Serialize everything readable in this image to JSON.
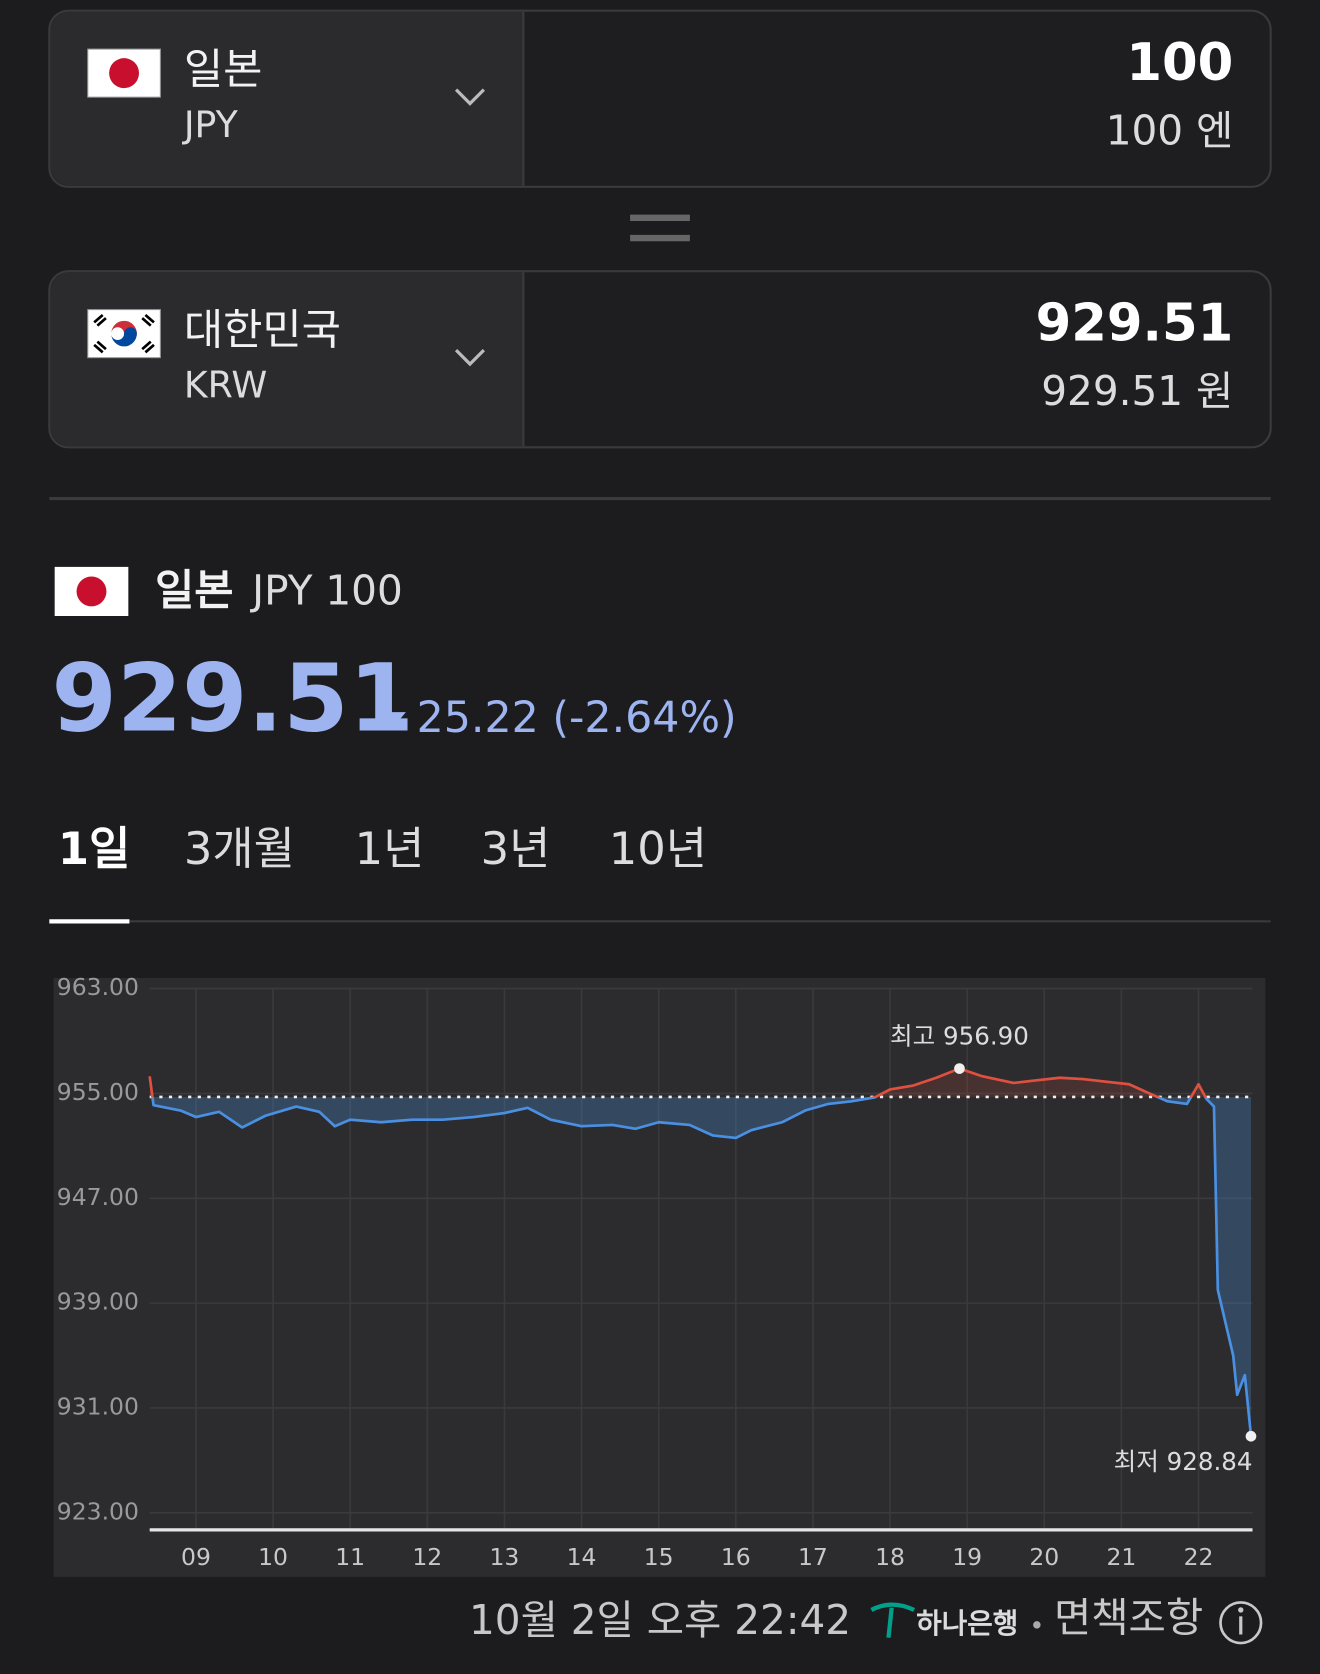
{
  "from": {
    "country": "일본",
    "code": "JPY",
    "amount": "100",
    "amount_text": "100 엔"
  },
  "to": {
    "country": "대한민국",
    "code": "KRW",
    "amount": "929.51",
    "amount_text": "929.51 원"
  },
  "summary": {
    "country": "일본",
    "unit": "JPY 100",
    "rate": "929.51",
    "change_text": "25.22 (-2.64%)"
  },
  "tabs": [
    "1일",
    "3개월",
    "1년",
    "3년",
    "10년"
  ],
  "footer": {
    "timestamp": "10월 2일 오후 22:42",
    "bank": "하나은행",
    "disclaimer": "면책조항"
  },
  "chart_data": {
    "type": "line",
    "x": [
      8.4,
      8.45,
      8.8,
      9.0,
      9.3,
      9.6,
      9.9,
      10.3,
      10.6,
      10.8,
      11.0,
      11.4,
      11.8,
      12.2,
      12.6,
      13.0,
      13.3,
      13.6,
      14.0,
      14.4,
      14.7,
      15.0,
      15.4,
      15.7,
      16.0,
      16.2,
      16.6,
      16.9,
      17.2,
      17.5,
      17.8,
      18.0,
      18.3,
      18.6,
      18.9,
      19.2,
      19.6,
      19.9,
      20.2,
      20.5,
      20.8,
      21.1,
      21.4,
      21.6,
      21.85,
      22.0,
      22.1,
      22.2,
      22.25,
      22.35,
      22.45,
      22.5,
      22.6,
      22.68
    ],
    "series": [
      {
        "color": "#4a90e2",
        "color_above": "#e0503f",
        "values": [
          956.3,
          954.1,
          953.7,
          953.2,
          953.6,
          952.4,
          953.3,
          954.0,
          953.6,
          952.5,
          953.0,
          952.8,
          953.0,
          953.0,
          953.2,
          953.5,
          953.9,
          953.0,
          952.5,
          952.6,
          952.3,
          952.8,
          952.6,
          951.8,
          951.6,
          952.2,
          952.8,
          953.7,
          954.2,
          954.4,
          954.7,
          955.3,
          955.6,
          956.2,
          956.9,
          956.3,
          955.8,
          956.0,
          956.2,
          956.1,
          955.9,
          955.7,
          954.9,
          954.4,
          954.2,
          955.7,
          954.6,
          954.0,
          940.0,
          937.5,
          935.0,
          932.0,
          933.5,
          928.84
        ]
      }
    ],
    "reference_line": 954.73,
    "annotations": [
      {
        "label": "최고 956.90",
        "x": 18.9,
        "y": 956.9
      },
      {
        "label": "최저 928.84",
        "x": 22.68,
        "y": 928.84
      }
    ],
    "xlim": [
      8.4,
      22.7
    ],
    "xticks": [
      {
        "value": 9,
        "label": "09"
      },
      10,
      11,
      12,
      13,
      14,
      15,
      16,
      17,
      18,
      19,
      20,
      21,
      22
    ],
    "ylim": [
      923,
      963
    ],
    "yticks": [
      {
        "value": 963,
        "label": "963.00"
      },
      {
        "value": 955,
        "label": "955.00"
      },
      {
        "value": 947,
        "label": "947.00"
      },
      {
        "value": 939,
        "label": "939.00"
      },
      {
        "value": 931,
        "label": "931.00"
      },
      {
        "value": 923,
        "label": "923.00"
      }
    ],
    "grid": true
  }
}
